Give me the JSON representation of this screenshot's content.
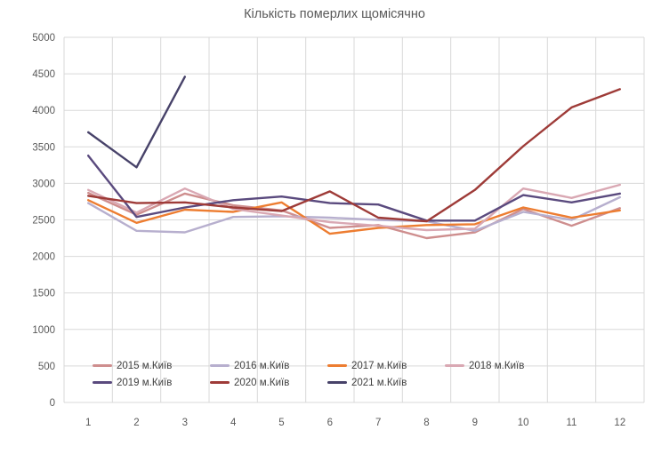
{
  "chart_data": {
    "type": "line",
    "title": "Кількість померлих щомісячно",
    "categories": [
      "1",
      "2",
      "3",
      "4",
      "5",
      "6",
      "7",
      "8",
      "9",
      "10",
      "11",
      "12"
    ],
    "ylim": [
      0,
      5000
    ],
    "ytick_step": 500,
    "ytick_labels": [
      "0",
      "500",
      "1000",
      "1500",
      "2000",
      "2500",
      "3000",
      "3500",
      "4000",
      "4500",
      "5000"
    ],
    "grid": true,
    "legend_position": "bottom-inside",
    "series": [
      {
        "name": "2015 м.Київ",
        "color": "#CE8E8E",
        "values": [
          2870,
          2570,
          2860,
          2700,
          2630,
          2390,
          2430,
          2250,
          2330,
          2650,
          2420,
          2660
        ]
      },
      {
        "name": "2016 м.Київ",
        "color": "#B7AFCE",
        "values": [
          2730,
          2350,
          2330,
          2540,
          2550,
          2530,
          2500,
          2480,
          2350,
          2610,
          2500,
          2810
        ]
      },
      {
        "name": "2017 м.Київ",
        "color": "#ED7D31",
        "values": [
          2770,
          2460,
          2640,
          2610,
          2740,
          2310,
          2390,
          2430,
          2440,
          2670,
          2530,
          2630
        ]
      },
      {
        "name": "2018 м.Київ",
        "color": "#D9A8B3",
        "values": [
          2910,
          2600,
          2930,
          2650,
          2560,
          2470,
          2420,
          2360,
          2380,
          2930,
          2800,
          2980
        ]
      },
      {
        "name": "2019 м.Київ",
        "color": "#5A4A7E",
        "values": [
          3380,
          2540,
          2670,
          2770,
          2820,
          2730,
          2710,
          2490,
          2490,
          2840,
          2740,
          2860
        ]
      },
      {
        "name": "2020 м.Київ",
        "color": "#9E3B38",
        "values": [
          2830,
          2730,
          2740,
          2670,
          2620,
          2890,
          2530,
          2480,
          2910,
          3510,
          4040,
          4290
        ]
      },
      {
        "name": "2021 м.Київ",
        "color": "#474269",
        "values": [
          3700,
          3220,
          4460
        ]
      }
    ],
    "legend_rows": [
      [
        "2015 м.Київ",
        "2016 м.Київ",
        "2017 м.Київ",
        "2018 м.Київ"
      ],
      [
        "2019 м.Київ",
        "2020 м.Київ",
        "2021 м.Київ"
      ]
    ]
  },
  "colors": {
    "grid": "#d9d9d9",
    "axis_text": "#595959",
    "title_text": "#595959",
    "legend_text": "#404040",
    "background": "#ffffff"
  }
}
